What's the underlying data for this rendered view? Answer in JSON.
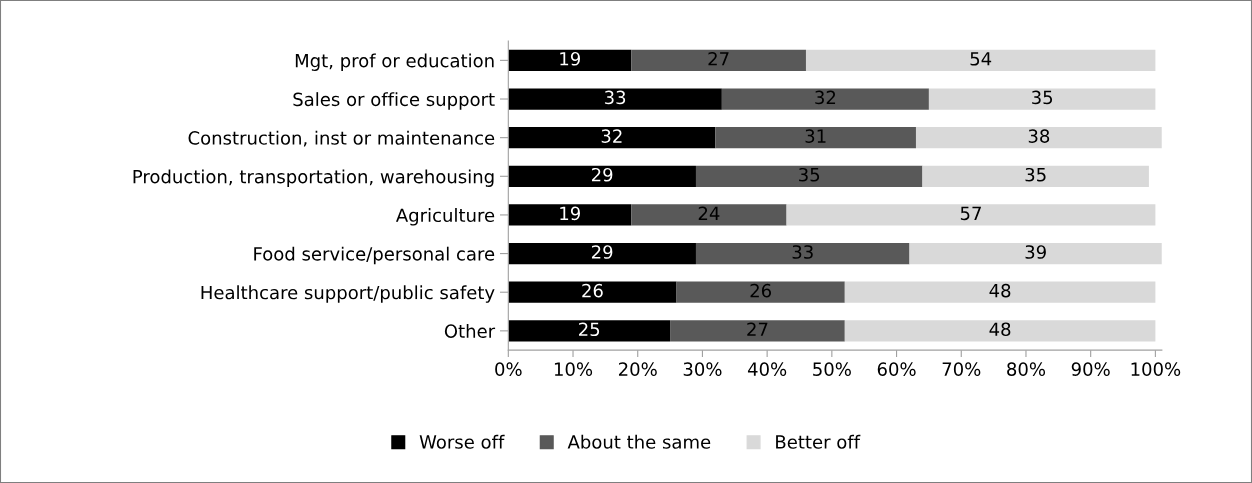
{
  "chart_data": {
    "type": "bar",
    "orientation": "horizontal",
    "stacked": true,
    "data_labels": true,
    "grid": false,
    "legend": "bottom",
    "categories": [
      "Mgt, prof or education",
      "Sales or office support",
      "Construction, inst or maintenance",
      "Production, transportation, warehousing",
      "Agriculture",
      "Food service/personal care",
      "Healthcare support/public safety",
      "Other"
    ],
    "series": [
      {
        "name": "Worse off",
        "color": "#000000",
        "values": [
          19,
          33,
          32,
          29,
          19,
          29,
          26,
          25
        ]
      },
      {
        "name": "About the same",
        "color": "#595959",
        "values": [
          27,
          32,
          31,
          35,
          24,
          33,
          26,
          27
        ]
      },
      {
        "name": "Better off",
        "color": "#d9d9d9",
        "values": [
          54,
          35,
          38,
          35,
          57,
          39,
          48,
          48
        ]
      }
    ],
    "xlim": [
      0,
      101
    ],
    "xticks": [
      {
        "value": 0,
        "label": "0%"
      },
      {
        "value": 10,
        "label": "10%"
      },
      {
        "value": 20,
        "label": "20%"
      },
      {
        "value": 30,
        "label": "30%"
      },
      {
        "value": 40,
        "label": "40%"
      },
      {
        "value": 50,
        "label": "50%"
      },
      {
        "value": 60,
        "label": "60%"
      },
      {
        "value": 70,
        "label": "70%"
      },
      {
        "value": 80,
        "label": "80%"
      },
      {
        "value": 90,
        "label": "90%"
      },
      {
        "value": 100,
        "label": "100%"
      }
    ]
  }
}
